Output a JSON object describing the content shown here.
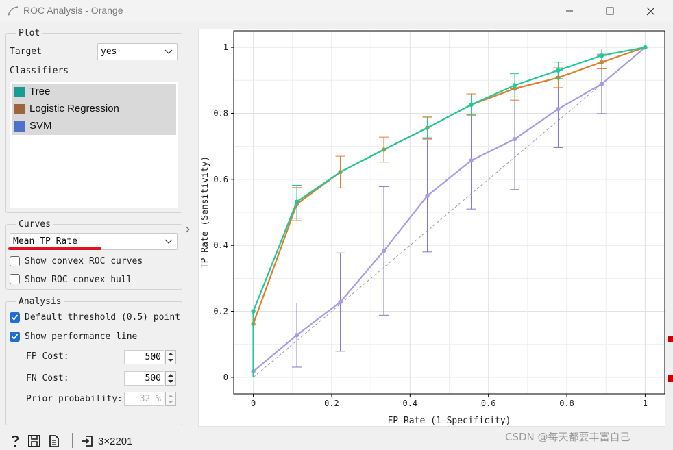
{
  "window": {
    "title": "ROC Analysis - Orange"
  },
  "plot_group": {
    "title": "Plot",
    "target_label": "Target",
    "target_value": "yes",
    "classifiers_label": "Classifiers",
    "classifiers": [
      {
        "name": "Tree",
        "color": "#1a9c96"
      },
      {
        "name": "Logistic Regression",
        "color": "#a0643b"
      },
      {
        "name": "SVM",
        "color": "#4f71c8"
      }
    ]
  },
  "curves_group": {
    "title": "Curves",
    "curve_type": "Mean TP Rate",
    "convex_roc_label": "Show convex ROC curves",
    "convex_roc_checked": false,
    "convex_hull_label": "Show ROC convex hull",
    "convex_hull_checked": false
  },
  "analysis_group": {
    "title": "Analysis",
    "default_threshold_label": "Default threshold (0.5) point",
    "default_threshold_checked": true,
    "performance_line_label": "Show performance line",
    "performance_line_checked": true,
    "fp_cost_label": "FP Cost:",
    "fp_cost": "500",
    "fn_cost_label": "FN Cost:",
    "fn_cost": "500",
    "prior_label": "Prior probability:",
    "prior": "32 %"
  },
  "footer": {
    "data_size": "3×2201",
    "watermark": "CSDN @每天都要丰富自己"
  },
  "chart_data": {
    "type": "line",
    "xlabel": "FP Rate (1-Specificity)",
    "ylabel": "TP Rate (Sensitivity)",
    "xlim": [
      -0.05,
      1.05
    ],
    "ylim": [
      -0.05,
      1.05
    ],
    "x_ticks": [
      "0",
      "0.2",
      "0.4",
      "0.6",
      "0.8",
      "1"
    ],
    "y_ticks": [
      "0",
      "0.2",
      "0.4",
      "0.6",
      "0.8",
      "1"
    ],
    "grid": true,
    "diagonal": true,
    "series": [
      {
        "name": "Tree",
        "color": "#21c99a",
        "x": [
          0,
          0,
          0.111,
          0.222,
          0.333,
          0.444,
          0.556,
          0.667,
          0.778,
          0.889,
          1
        ],
        "y": [
          0,
          0.2,
          0.532,
          0.622,
          0.69,
          0.756,
          0.826,
          0.885,
          0.93,
          0.975,
          1
        ],
        "err": [
          0,
          0,
          0.05,
          0,
          0,
          0.03,
          0.03,
          0.035,
          0.025,
          0.02,
          0
        ],
        "point_idx": [
          1,
          2,
          6,
          7,
          8,
          9,
          10
        ]
      },
      {
        "name": "Logistic Regression",
        "color": "#e07d2a",
        "x": [
          0,
          0,
          0.111,
          0.222,
          0.333,
          0.444,
          0.556,
          0.667,
          0.778,
          0.889,
          1
        ],
        "y": [
          0,
          0.162,
          0.525,
          0.622,
          0.69,
          0.756,
          0.826,
          0.875,
          0.908,
          0.955,
          1
        ],
        "err": [
          0,
          0,
          0.05,
          0.048,
          0.038,
          0.033,
          0.033,
          0.035,
          0.03,
          0.02,
          0
        ],
        "point_idx": [
          1,
          2,
          3,
          4,
          5,
          6,
          7,
          8,
          9,
          10
        ]
      },
      {
        "name": "SVM",
        "color": "#a59be8",
        "err_color": "#7f79cc",
        "x": [
          0,
          0.111,
          0.222,
          0.333,
          0.444,
          0.556,
          0.667,
          0.778,
          0.889,
          1
        ],
        "y": [
          0.018,
          0.128,
          0.228,
          0.383,
          0.55,
          0.657,
          0.722,
          0.813,
          0.889,
          1
        ],
        "err": [
          0,
          0.097,
          0.149,
          0.195,
          0.17,
          0.147,
          0.153,
          0.117,
          0.09,
          0
        ],
        "point_idx": [
          0,
          1,
          2,
          3,
          4,
          5,
          6,
          7,
          8,
          9
        ]
      }
    ]
  }
}
